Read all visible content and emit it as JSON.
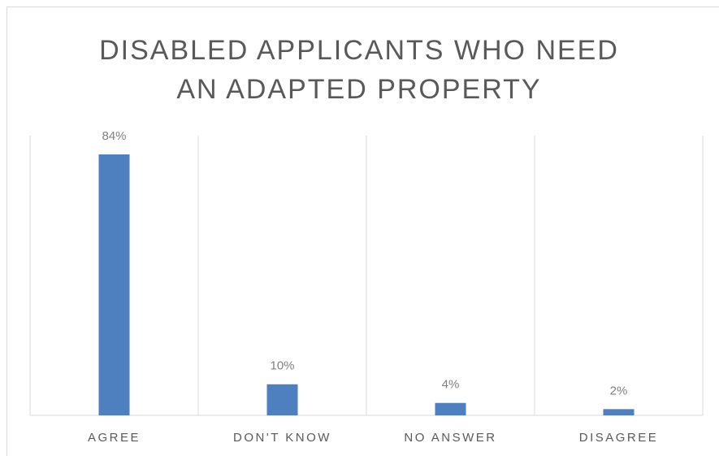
{
  "chart_data": {
    "type": "bar",
    "title": "DISABLED APPLICANTS WHO NEED AN ADAPTED PROPERTY",
    "categories": [
      "AGREE",
      "DON'T KNOW",
      "NO ANSWER",
      "DISAGREE"
    ],
    "values": [
      84,
      10,
      4,
      2
    ],
    "value_labels": [
      "84%",
      "10%",
      "4%",
      "2%"
    ],
    "color": "#4e7fbf",
    "ylim": [
      0,
      90
    ]
  }
}
